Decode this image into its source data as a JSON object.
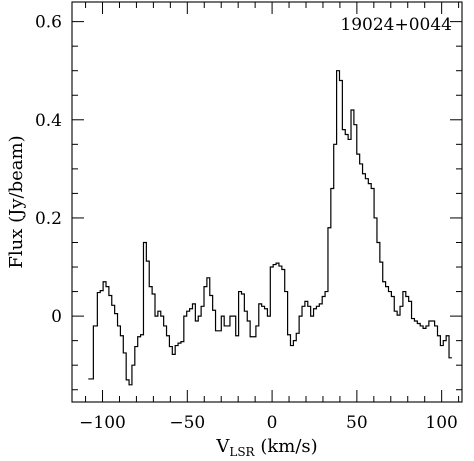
{
  "chart_data": {
    "type": "line",
    "drawstyle": "steps-mid",
    "source_name": "19024+0044",
    "xlabel_main": "V",
    "xlabel_sub": "LSR",
    "xlabel_unit": " (km/s)",
    "ylabel": "Flux (Jy/beam)",
    "xlim": [
      -118,
      112
    ],
    "ylim": [
      -0.175,
      0.64
    ],
    "xticks_major": [
      -100,
      -50,
      0,
      50,
      100
    ],
    "xtick_labels": [
      "−100",
      "−50",
      "0",
      "50",
      "100"
    ],
    "yticks_major": [
      0,
      0.2,
      0.4,
      0.6
    ],
    "ytick_labels": [
      "0",
      "0.2",
      "0.4",
      "0.6"
    ],
    "x_minor_step": 10,
    "y_minor_step": 0.05,
    "grid": false,
    "series": [
      {
        "x": [
          -106.9,
          -103.9,
          -102.2,
          -100.5,
          -98.8,
          -97.1,
          -95.4,
          -93.7,
          -92.0,
          -90.3,
          -88.6,
          -86.9,
          -85.2,
          -83.5,
          -81.8,
          -80.1,
          -78.4,
          -76.7,
          -75.0,
          -73.3,
          -71.6,
          -69.9,
          -68.2,
          -66.5,
          -64.8,
          -63.1,
          -61.4,
          -59.7,
          -58.0,
          -56.3,
          -54.6,
          -52.9,
          -51.2,
          -49.5,
          -47.8,
          -46.1,
          -44.4,
          -42.7,
          -41.0,
          -39.3,
          -37.6,
          -35.9,
          -34.2,
          -32.5,
          -30.8,
          -29.1,
          -27.4,
          -25.7,
          -24.0,
          -22.3,
          -20.6,
          -18.9,
          -17.2,
          -15.5,
          -13.8,
          -12.1,
          -10.4,
          -8.7,
          -7.0,
          -5.3,
          -3.6,
          -1.9,
          -0.2,
          1.5,
          3.2,
          4.9,
          6.6,
          8.3,
          10.0,
          11.7,
          13.4,
          15.1,
          16.8,
          18.5,
          20.2,
          21.9,
          23.6,
          25.3,
          27.0,
          28.7,
          30.4,
          32.1,
          33.8,
          35.5,
          37.2,
          38.9,
          40.6,
          42.3,
          44.0,
          45.7,
          47.4,
          49.1,
          50.8,
          52.5,
          54.2,
          55.9,
          57.6,
          59.3,
          61.0,
          62.7,
          64.4,
          66.1,
          67.8,
          69.5,
          71.2,
          72.9,
          74.6,
          76.3,
          78.0,
          79.7,
          81.4,
          83.1,
          84.8,
          86.5,
          88.2,
          89.9,
          91.6,
          93.3,
          95.0,
          96.7,
          98.4,
          100.1,
          101.8,
          103.5,
          105.2
        ],
        "y": [
          -0.128,
          -0.02,
          0.048,
          0.052,
          0.07,
          0.06,
          0.042,
          0.022,
          0.005,
          -0.02,
          -0.04,
          -0.075,
          -0.13,
          -0.14,
          -0.1,
          -0.062,
          -0.042,
          -0.038,
          0.15,
          0.112,
          0.06,
          0.045,
          0.0,
          0.01,
          0.0,
          -0.02,
          -0.04,
          -0.062,
          -0.078,
          -0.06,
          -0.055,
          -0.052,
          0.0,
          0.01,
          0.015,
          0.025,
          -0.01,
          0.0,
          0.02,
          0.06,
          0.078,
          0.042,
          0.012,
          -0.03,
          -0.03,
          0.0,
          -0.02,
          -0.02,
          0.0,
          0.0,
          -0.04,
          0.05,
          0.045,
          0.01,
          -0.01,
          -0.042,
          -0.042,
          -0.02,
          0.025,
          0.02,
          0.015,
          0.0,
          0.1,
          0.105,
          0.108,
          0.102,
          0.095,
          0.05,
          -0.038,
          -0.06,
          -0.05,
          -0.035,
          0.0,
          0.02,
          0.03,
          0.02,
          0.0,
          0.015,
          0.02,
          0.025,
          0.04,
          0.05,
          0.18,
          0.26,
          0.35,
          0.5,
          0.48,
          0.38,
          0.37,
          0.36,
          0.42,
          0.39,
          0.33,
          0.31,
          0.29,
          0.28,
          0.27,
          0.26,
          0.2,
          0.15,
          0.11,
          0.07,
          0.06,
          0.05,
          0.04,
          0.01,
          0.002,
          0.02,
          0.05,
          0.04,
          0.03,
          -0.005,
          -0.01,
          -0.015,
          -0.02,
          -0.025,
          -0.02,
          -0.01,
          -0.01,
          -0.02,
          -0.04,
          -0.06,
          -0.05,
          -0.04,
          -0.085
        ],
        "_note": "placeholder"
      }
    ]
  }
}
